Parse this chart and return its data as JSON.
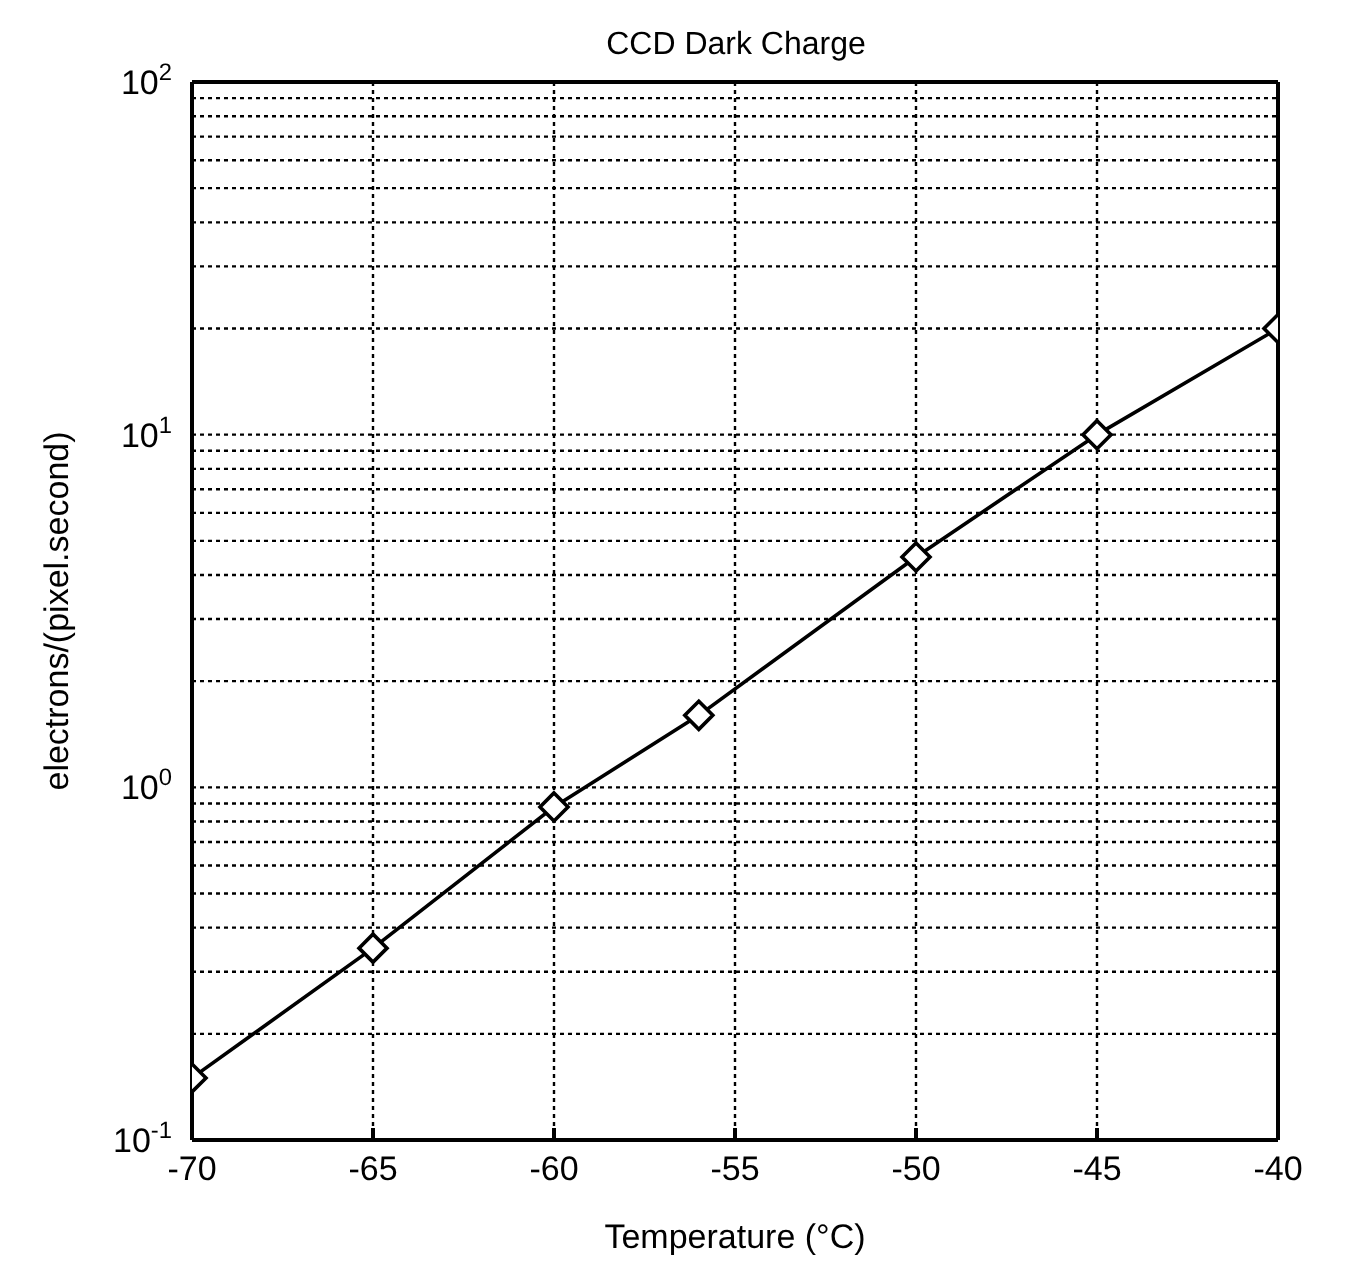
{
  "chart_data": {
    "type": "line",
    "title": "CCD Dark Charge",
    "xlabel": "Temperature   (°C)",
    "ylabel": "electrons/(pixel.second)",
    "x": [
      -70,
      -65,
      -60,
      -56,
      -50,
      -45,
      -40
    ],
    "series": [
      {
        "color": "#000000",
        "values": [
          0.15,
          0.35,
          0.88,
          1.6,
          4.5,
          10,
          20
        ]
      }
    ],
    "xlim": [
      -70,
      -40
    ],
    "xticks": [
      -70,
      -65,
      -60,
      -55,
      -50,
      -45,
      -40
    ],
    "ylim": [
      0.1,
      100
    ],
    "yticks": [
      {
        "value": 0.1,
        "label": "10$^{-1}$"
      },
      {
        "value": 0.2,
        "label": null
      },
      {
        "value": 0.3,
        "label": null
      },
      {
        "value": 0.4,
        "label": null
      },
      {
        "value": 0.5,
        "label": null
      },
      {
        "value": 0.6,
        "label": null
      },
      {
        "value": 0.7,
        "label": null
      },
      {
        "value": 0.8,
        "label": null
      },
      {
        "value": 0.9,
        "label": null
      },
      {
        "value": 1,
        "label": "10$^{0}$"
      },
      {
        "value": 2,
        "label": null
      },
      {
        "value": 3,
        "label": null
      },
      {
        "value": 4,
        "label": null
      },
      {
        "value": 5,
        "label": null
      },
      {
        "value": 6,
        "label": null
      },
      {
        "value": 7,
        "label": null
      },
      {
        "value": 8,
        "label": null
      },
      {
        "value": 9,
        "label": null
      },
      {
        "value": 10,
        "label": "10$^{1}$"
      },
      {
        "value": 20,
        "label": null
      },
      {
        "value": 30,
        "label": null
      },
      {
        "value": 40,
        "label": null
      },
      {
        "value": 50,
        "label": null
      },
      {
        "value": 60,
        "label": null
      },
      {
        "value": 70,
        "label": null
      },
      {
        "value": 80,
        "label": null
      },
      {
        "value": 90,
        "label": null
      },
      {
        "value": 100,
        "label": "10$^{2}$"
      }
    ],
    "log": true,
    "grid": true,
    "marker": "diamond",
    "line_style": "solid"
  }
}
